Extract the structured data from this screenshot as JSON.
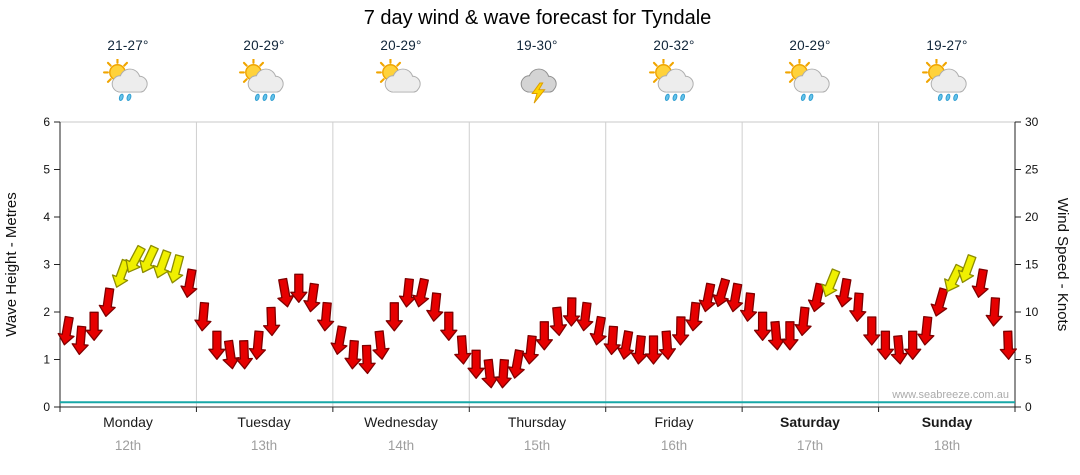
{
  "page": {
    "title": "7 day wind & wave forecast for Tyndale",
    "watermark": "www.seabreeze.com.au"
  },
  "days": [
    {
      "name": "Monday",
      "date": "12th",
      "temp_range": "21-27°",
      "bold": false,
      "icon": {
        "type": "sun-cloud-showers",
        "sun": true,
        "rain": 2,
        "bolt": false,
        "dark": false
      }
    },
    {
      "name": "Tuesday",
      "date": "13th",
      "temp_range": "20-29°",
      "bold": false,
      "icon": {
        "type": "sun-cloud-rain",
        "sun": true,
        "rain": 3,
        "bolt": false,
        "dark": false
      }
    },
    {
      "name": "Wednesday",
      "date": "14th",
      "temp_range": "20-29°",
      "bold": false,
      "icon": {
        "type": "sun-cloud",
        "sun": true,
        "rain": 0,
        "bolt": false,
        "dark": false
      }
    },
    {
      "name": "Thursday",
      "date": "15th",
      "temp_range": "19-30°",
      "bold": false,
      "icon": {
        "type": "thunderstorm",
        "sun": false,
        "rain": 0,
        "bolt": true,
        "dark": true
      }
    },
    {
      "name": "Friday",
      "date": "16th",
      "temp_range": "20-32°",
      "bold": false,
      "icon": {
        "type": "sun-cloud-rain",
        "sun": true,
        "rain": 3,
        "bolt": false,
        "dark": false
      }
    },
    {
      "name": "Saturday",
      "date": "17th",
      "temp_range": "20-29°",
      "bold": true,
      "icon": {
        "type": "sun-cloud-showers",
        "sun": true,
        "rain": 2,
        "bolt": false,
        "dark": false
      }
    },
    {
      "name": "Sunday",
      "date": "18th",
      "temp_range": "19-27°",
      "bold": true,
      "icon": {
        "type": "sun-cloud-rain",
        "sun": true,
        "rain": 3,
        "bolt": false,
        "dark": false
      }
    }
  ],
  "chart_data": {
    "type": "scatter",
    "marker": "wind-direction-arrow",
    "title": "7 day wind & wave forecast for Tyndale",
    "left_axis": {
      "label": "Wave Height - Metres",
      "min": 0,
      "max": 6,
      "ticks": [
        0,
        1,
        2,
        3,
        4,
        5,
        6
      ]
    },
    "right_axis": {
      "label": "Wind Speed - Knots",
      "min": 0,
      "max": 30,
      "ticks": [
        0,
        5,
        10,
        15,
        20,
        25,
        30
      ]
    },
    "x_categories": [
      "Monday 12th",
      "Tuesday 13th",
      "Wednesday 14th",
      "Thursday 15th",
      "Friday 16th",
      "Saturday 17th",
      "Sunday 18th"
    ],
    "grid": "vertical-day-separators",
    "arrow_colors": {
      "red": "#E60000",
      "red_outline": "#7F0000",
      "yellow": "#F0F000",
      "yellow_outline": "#8C8C00"
    },
    "wave_height_m": {
      "style": "line",
      "color": "#18A7A7",
      "values_constant": 0.1
    },
    "wind_knots": {
      "points_per_day": 10,
      "days": [
        {
          "day": "Monday",
          "values": [
            8,
            7,
            8.5,
            11,
            14,
            15.5,
            15.5,
            15,
            14.5,
            13
          ],
          "colors": [
            "r",
            "r",
            "r",
            "r",
            "y",
            "y",
            "y",
            "y",
            "y",
            "r"
          ],
          "directions_deg": [
            190,
            185,
            180,
            188,
            200,
            208,
            205,
            200,
            195,
            190
          ]
        },
        {
          "day": "Tuesday",
          "values": [
            9.5,
            6.5,
            5.5,
            5.5,
            6.5,
            9,
            12,
            12.5,
            11.5,
            9.5
          ],
          "colors": [
            "r",
            "r",
            "r",
            "r",
            "r",
            "r",
            "r",
            "r",
            "r",
            "r"
          ],
          "directions_deg": [
            185,
            180,
            172,
            178,
            185,
            178,
            170,
            180,
            188,
            185
          ]
        },
        {
          "day": "Wednesday",
          "values": [
            7,
            5.5,
            5,
            6.5,
            9.5,
            12,
            12,
            10.5,
            8.5,
            6
          ],
          "colors": [
            "r",
            "r",
            "r",
            "r",
            "r",
            "r",
            "r",
            "r",
            "r",
            "r"
          ],
          "directions_deg": [
            190,
            184,
            178,
            174,
            180,
            186,
            192,
            186,
            180,
            176
          ]
        },
        {
          "day": "Thursday",
          "values": [
            4.5,
            3.5,
            3.5,
            4.5,
            6,
            7.5,
            9,
            10,
            9.5,
            8
          ],
          "colors": [
            "r",
            "r",
            "r",
            "r",
            "r",
            "r",
            "r",
            "r",
            "r",
            "r"
          ],
          "directions_deg": [
            180,
            174,
            184,
            190,
            186,
            180,
            175,
            181,
            187,
            190
          ]
        },
        {
          "day": "Friday",
          "values": [
            7,
            6.5,
            6,
            6,
            6.5,
            8,
            9.5,
            11.5,
            12,
            11.5
          ],
          "colors": [
            "r",
            "r",
            "r",
            "r",
            "r",
            "r",
            "r",
            "r",
            "r",
            "r"
          ],
          "directions_deg": [
            184,
            190,
            186,
            180,
            176,
            181,
            186,
            191,
            196,
            190
          ]
        },
        {
          "day": "Saturday",
          "values": [
            10.5,
            8.5,
            7.5,
            7.5,
            9,
            11.5,
            13,
            12,
            10.5,
            8
          ],
          "colors": [
            "r",
            "r",
            "r",
            "r",
            "r",
            "r",
            "y",
            "r",
            "r",
            "r"
          ],
          "directions_deg": [
            186,
            180,
            175,
            180,
            186,
            192,
            202,
            190,
            184,
            180
          ]
        },
        {
          "day": "Sunday",
          "values": [
            6.5,
            6,
            6.5,
            8,
            11,
            13.5,
            14.5,
            13,
            10,
            6.5
          ],
          "colors": [
            "r",
            "r",
            "r",
            "r",
            "r",
            "y",
            "y",
            "r",
            "r",
            "r"
          ],
          "directions_deg": [
            180,
            175,
            180,
            186,
            196,
            206,
            200,
            190,
            184,
            178
          ]
        }
      ]
    }
  }
}
